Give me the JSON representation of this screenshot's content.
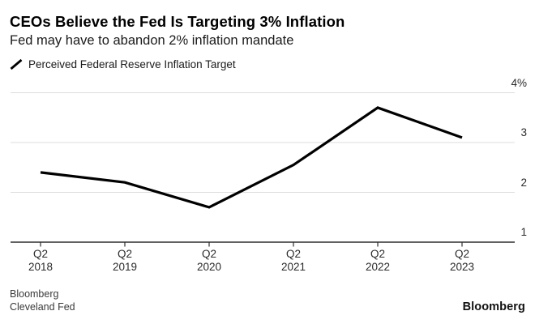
{
  "header": {
    "title": "CEOs Believe the Fed Is Targeting 3% Inflation",
    "subtitle": "Fed may have to abandon 2% inflation mandate"
  },
  "legend": {
    "label": "Perceived Federal Reserve Inflation Target"
  },
  "chart_data": {
    "type": "line",
    "title": "CEOs Believe the Fed Is Targeting 3% Inflation",
    "subtitle": "Fed may have to abandon 2% inflation mandate",
    "categories": [
      {
        "quarter": "Q2",
        "year": "2018"
      },
      {
        "quarter": "Q2",
        "year": "2019"
      },
      {
        "quarter": "Q2",
        "year": "2020"
      },
      {
        "quarter": "Q2",
        "year": "2021"
      },
      {
        "quarter": "Q2",
        "year": "2022"
      },
      {
        "quarter": "Q2",
        "year": "2023"
      }
    ],
    "series": [
      {
        "name": "Perceived Federal Reserve Inflation Target",
        "values": [
          2.4,
          2.2,
          1.7,
          2.55,
          3.7,
          3.1
        ],
        "color": "#000000"
      }
    ],
    "xlabel": "",
    "ylabel": "",
    "ylim": [
      1,
      4
    ],
    "y_ticks": [
      {
        "value": 4,
        "label": "4%"
      },
      {
        "value": 3,
        "label": "3"
      },
      {
        "value": 2,
        "label": "2"
      },
      {
        "value": 1,
        "label": "1"
      }
    ],
    "grid": "horizontal",
    "legend_position": "top-left",
    "colors": {
      "line": "#000000",
      "grid": "#dedede",
      "axis": "#2e2e2e",
      "tick_text": "#2b2b2b"
    }
  },
  "footer": {
    "source_line1": "Bloomberg",
    "source_line2": "Cleveland Fed",
    "logo": "Bloomberg"
  }
}
